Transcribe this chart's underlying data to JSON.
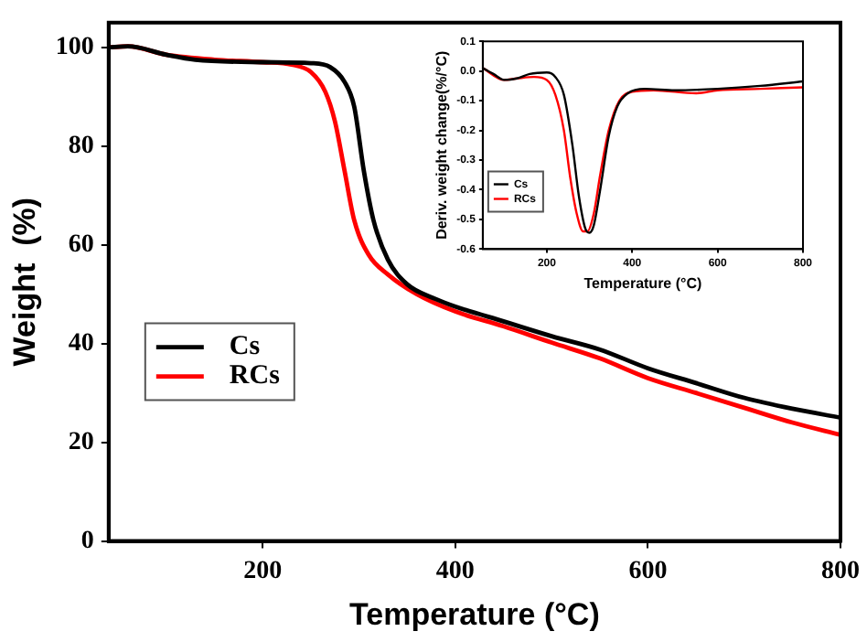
{
  "chart_data": [
    {
      "type": "line",
      "xlabel": "Temperature (°C)",
      "ylabel": "Weight  (%)",
      "xlim": [
        40,
        800
      ],
      "ylim": [
        0,
        105
      ],
      "xticks": [
        200,
        400,
        600,
        800
      ],
      "yticks": [
        0,
        20,
        40,
        60,
        80,
        100
      ],
      "grid": false,
      "legend": "left",
      "marker": "none",
      "line_style": "solid",
      "series": [
        {
          "name": "Cs",
          "color": "#000000",
          "x": [
            40,
            60,
            100,
            130,
            200,
            250,
            270,
            285,
            295,
            305,
            315,
            330,
            350,
            380,
            400,
            450,
            500,
            550,
            600,
            650,
            700,
            750,
            800
          ],
          "values": [
            100,
            100.2,
            98.5,
            97.5,
            97,
            96.8,
            96,
            93,
            88,
            75,
            65,
            57,
            52,
            49,
            47.5,
            44.5,
            41.5,
            38.8,
            35,
            32,
            29,
            26.8,
            25
          ]
        },
        {
          "name": "RCs",
          "color": "#ff0000",
          "x": [
            40,
            60,
            100,
            150,
            200,
            230,
            250,
            265,
            275,
            285,
            295,
            310,
            330,
            360,
            400,
            450,
            500,
            550,
            600,
            650,
            700,
            750,
            800
          ],
          "values": [
            100,
            100.2,
            98.5,
            97.5,
            97,
            96.5,
            95,
            91,
            85,
            75,
            65,
            58,
            54,
            50,
            46.5,
            43.5,
            40.2,
            37,
            33,
            30,
            27,
            24,
            21.5
          ]
        }
      ]
    },
    {
      "type": "line",
      "xlabel": "Temperature (°C)",
      "ylabel": "Deriv. weight change(%/°C)",
      "xlim": [
        50,
        800
      ],
      "ylim": [
        -0.6,
        0.1
      ],
      "xticks": [
        200,
        400,
        600,
        800
      ],
      "yticks": [
        {
          "value": -0.6,
          "label": "-0.6"
        },
        {
          "value": -0.5,
          "label": "-0.5"
        },
        {
          "value": -0.4,
          "label": "-0.4"
        },
        {
          "value": -0.3,
          "label": "-0.3"
        },
        {
          "value": -0.2,
          "label": "-0.2"
        },
        {
          "value": -0.1,
          "label": "-0.1"
        },
        {
          "value": 0,
          "label": "0.0"
        },
        {
          "value": 0.1,
          "label": "0.1"
        }
      ],
      "grid": false,
      "legend": "bottom left",
      "marker": "none",
      "line_style": "solid",
      "series": [
        {
          "name": "Cs",
          "color": "#000000",
          "x": [
            50,
            75,
            100,
            130,
            160,
            200,
            220,
            240,
            260,
            275,
            290,
            300,
            310,
            325,
            345,
            365,
            390,
            430,
            500,
            600,
            700,
            800
          ],
          "values": [
            0.01,
            -0.01,
            -0.03,
            -0.025,
            -0.01,
            -0.005,
            -0.02,
            -0.08,
            -0.25,
            -0.42,
            -0.53,
            -0.545,
            -0.52,
            -0.4,
            -0.22,
            -0.12,
            -0.075,
            -0.06,
            -0.065,
            -0.06,
            -0.05,
            -0.035
          ]
        },
        {
          "name": "RCs",
          "color": "#ff0000",
          "x": [
            50,
            100,
            130,
            170,
            200,
            220,
            240,
            255,
            270,
            285,
            295,
            310,
            325,
            345,
            370,
            400,
            450,
            550,
            600,
            700,
            800
          ],
          "values": [
            0.01,
            -0.03,
            -0.025,
            -0.02,
            -0.03,
            -0.08,
            -0.2,
            -0.36,
            -0.48,
            -0.54,
            -0.54,
            -0.48,
            -0.35,
            -0.2,
            -0.1,
            -0.07,
            -0.065,
            -0.075,
            -0.065,
            -0.06,
            -0.055
          ]
        }
      ]
    }
  ]
}
